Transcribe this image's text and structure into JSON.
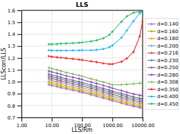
{
  "chart_data": {
    "type": "line",
    "title": "LLS",
    "x_label": "LLS/Rm",
    "y_label": "LLScorr/LLS",
    "log": "x",
    "grid": true,
    "legend": "right",
    "marker": "plus",
    "xlim": [
      1.0,
      10000.0
    ],
    "ylim": [
      0.7,
      1.6
    ],
    "xticks": [
      {
        "value": 1,
        "label": "1.00"
      },
      {
        "value": 10,
        "label": "10.00"
      },
      {
        "value": 100,
        "label": "100.00"
      },
      {
        "value": 1000,
        "label": "1000.00"
      },
      {
        "value": 10000,
        "label": "10000.00"
      }
    ],
    "yticks": [
      0.7,
      0.8,
      0.9,
      {
        "value": 1,
        "label": "1.0"
      },
      1.1,
      1.2,
      1.3,
      1.4,
      1.5,
      1.6
    ],
    "x": [
      8,
      10,
      15,
      20,
      30,
      50,
      80,
      100,
      200,
      300,
      500,
      800,
      1000,
      2000,
      3000,
      5000,
      8000,
      10000
    ],
    "series": [
      {
        "name": "d=0.140",
        "color": "#9B59B6",
        "values": [
          0.975,
          0.968,
          0.958,
          0.95,
          0.94,
          0.928,
          0.916,
          0.91,
          0.89,
          0.878,
          0.862,
          0.848,
          0.84,
          0.82,
          0.808,
          0.793,
          0.782,
          0.778
        ]
      },
      {
        "name": "d=0.160",
        "color": "#A0A000",
        "values": [
          0.99,
          0.982,
          0.972,
          0.963,
          0.952,
          0.94,
          0.928,
          0.922,
          0.902,
          0.89,
          0.875,
          0.86,
          0.852,
          0.832,
          0.82,
          0.805,
          0.793,
          0.789
        ]
      },
      {
        "name": "d=0.180",
        "color": "#FF8C00",
        "values": [
          1.005,
          0.997,
          0.986,
          0.977,
          0.966,
          0.954,
          0.942,
          0.935,
          0.915,
          0.903,
          0.888,
          0.873,
          0.865,
          0.845,
          0.832,
          0.818,
          0.806,
          0.802
        ]
      },
      {
        "name": "d=0.200",
        "color": "#5B9BD5",
        "values": [
          1.02,
          1.012,
          1.001,
          0.992,
          0.981,
          0.968,
          0.956,
          0.949,
          0.929,
          0.917,
          0.901,
          0.887,
          0.879,
          0.858,
          0.845,
          0.831,
          0.819,
          0.815
        ]
      },
      {
        "name": "d=0.216",
        "color": "#C0392B",
        "values": [
          1.035,
          1.027,
          1.016,
          1.007,
          0.996,
          0.983,
          0.971,
          0.964,
          0.944,
          0.932,
          0.916,
          0.901,
          0.893,
          0.872,
          0.859,
          0.845,
          0.833,
          0.829
        ]
      },
      {
        "name": "d=0.230",
        "color": "#2E75B6",
        "values": [
          1.05,
          1.042,
          1.031,
          1.022,
          1.011,
          0.998,
          0.986,
          0.979,
          0.958,
          0.946,
          0.931,
          0.916,
          0.908,
          0.887,
          0.874,
          0.859,
          0.848,
          0.843
        ]
      },
      {
        "name": "d=0.250",
        "color": "#595959",
        "values": [
          1.065,
          1.057,
          1.046,
          1.037,
          1.025,
          1.012,
          1.0,
          0.993,
          0.973,
          0.96,
          0.944,
          0.93,
          0.921,
          0.901,
          0.888,
          0.873,
          0.861,
          0.857
        ]
      },
      {
        "name": "d=0.280",
        "color": "#7B2FBE",
        "values": [
          1.09,
          1.082,
          1.071,
          1.062,
          1.05,
          1.037,
          1.025,
          1.018,
          0.997,
          0.985,
          0.969,
          0.954,
          0.946,
          0.925,
          0.912,
          0.897,
          0.886,
          0.881
        ]
      },
      {
        "name": "d=0.308",
        "color": "#70AD47",
        "values": [
          1.118,
          1.11,
          1.099,
          1.09,
          1.078,
          1.065,
          1.053,
          1.046,
          1.025,
          1.013,
          0.997,
          0.982,
          0.974,
          0.975,
          0.978,
          0.982,
          0.987,
          0.99
        ]
      },
      {
        "name": "d=0.350",
        "color": "#FF0000",
        "values": [
          1.215,
          1.21,
          1.205,
          1.202,
          1.198,
          1.192,
          1.186,
          1.183,
          1.172,
          1.165,
          1.155,
          1.148,
          1.148,
          1.168,
          1.195,
          1.25,
          1.38,
          1.51
        ]
      },
      {
        "name": "d=0.400",
        "color": "#00AAFF",
        "values": [
          1.265,
          1.263,
          1.262,
          1.262,
          1.262,
          1.263,
          1.263,
          1.265,
          1.265,
          1.268,
          1.275,
          1.29,
          1.305,
          1.37,
          1.43,
          1.51,
          1.575,
          1.59
        ]
      },
      {
        "name": "d=0.450",
        "color": "#00B050",
        "values": [
          1.315,
          1.315,
          1.317,
          1.32,
          1.322,
          1.325,
          1.328,
          1.33,
          1.34,
          1.348,
          1.365,
          1.395,
          1.42,
          1.505,
          1.55,
          1.58,
          1.59,
          1.59
        ]
      }
    ]
  }
}
